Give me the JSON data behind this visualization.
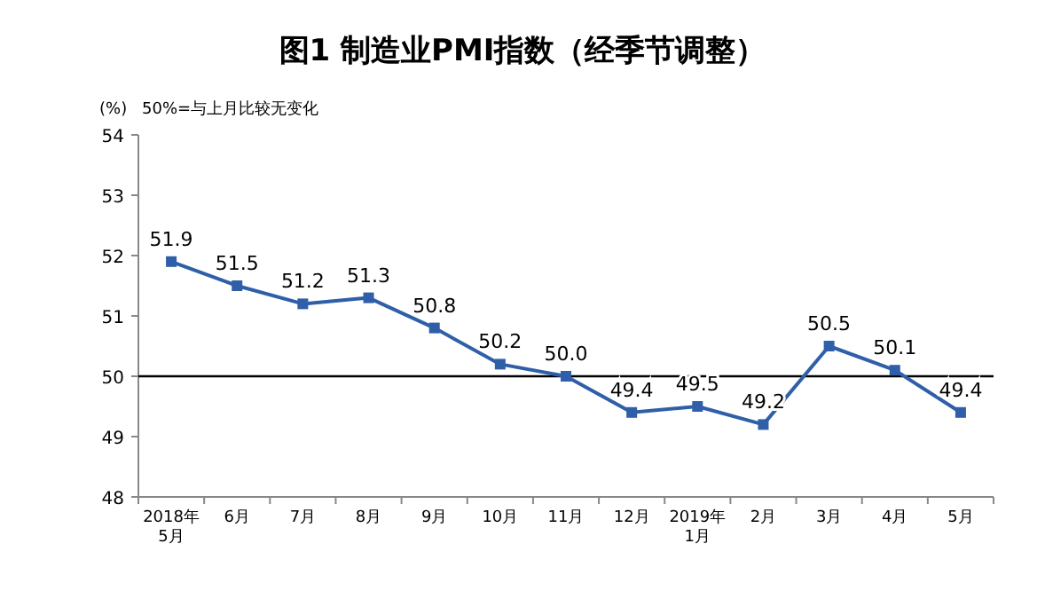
{
  "chart_data": {
    "type": "line",
    "title": "图1  制造业PMI指数（经季节调整）",
    "ylabel": "(%)",
    "annotations": [
      "50%=与上月比较无变化"
    ],
    "categories": [
      "2018年\n5月",
      "6月",
      "7月",
      "8月",
      "9月",
      "10月",
      "11月",
      "12月",
      "2019年\n1月",
      "2月",
      "3月",
      "4月",
      "5月"
    ],
    "series": [
      {
        "color": "#2f5fa8",
        "values": [
          51.9,
          51.5,
          51.2,
          51.3,
          50.8,
          50.2,
          50.0,
          49.4,
          49.5,
          49.2,
          50.5,
          50.1,
          49.4
        ],
        "value_labels": [
          "51.9",
          "51.5",
          "51.2",
          "51.3",
          "50.8",
          "50.2",
          "50.0",
          "49.4",
          "49.5",
          "49.2",
          "50.5",
          "50.1",
          "49.4"
        ]
      }
    ],
    "ylim": [
      48,
      54
    ],
    "yticks": [
      48,
      49,
      50,
      51,
      52,
      53,
      54
    ],
    "marker": "square",
    "line_style": "solid",
    "grid": false,
    "ref_lines": [
      {
        "axis": "y",
        "value": 50,
        "color": "#000000"
      }
    ]
  }
}
